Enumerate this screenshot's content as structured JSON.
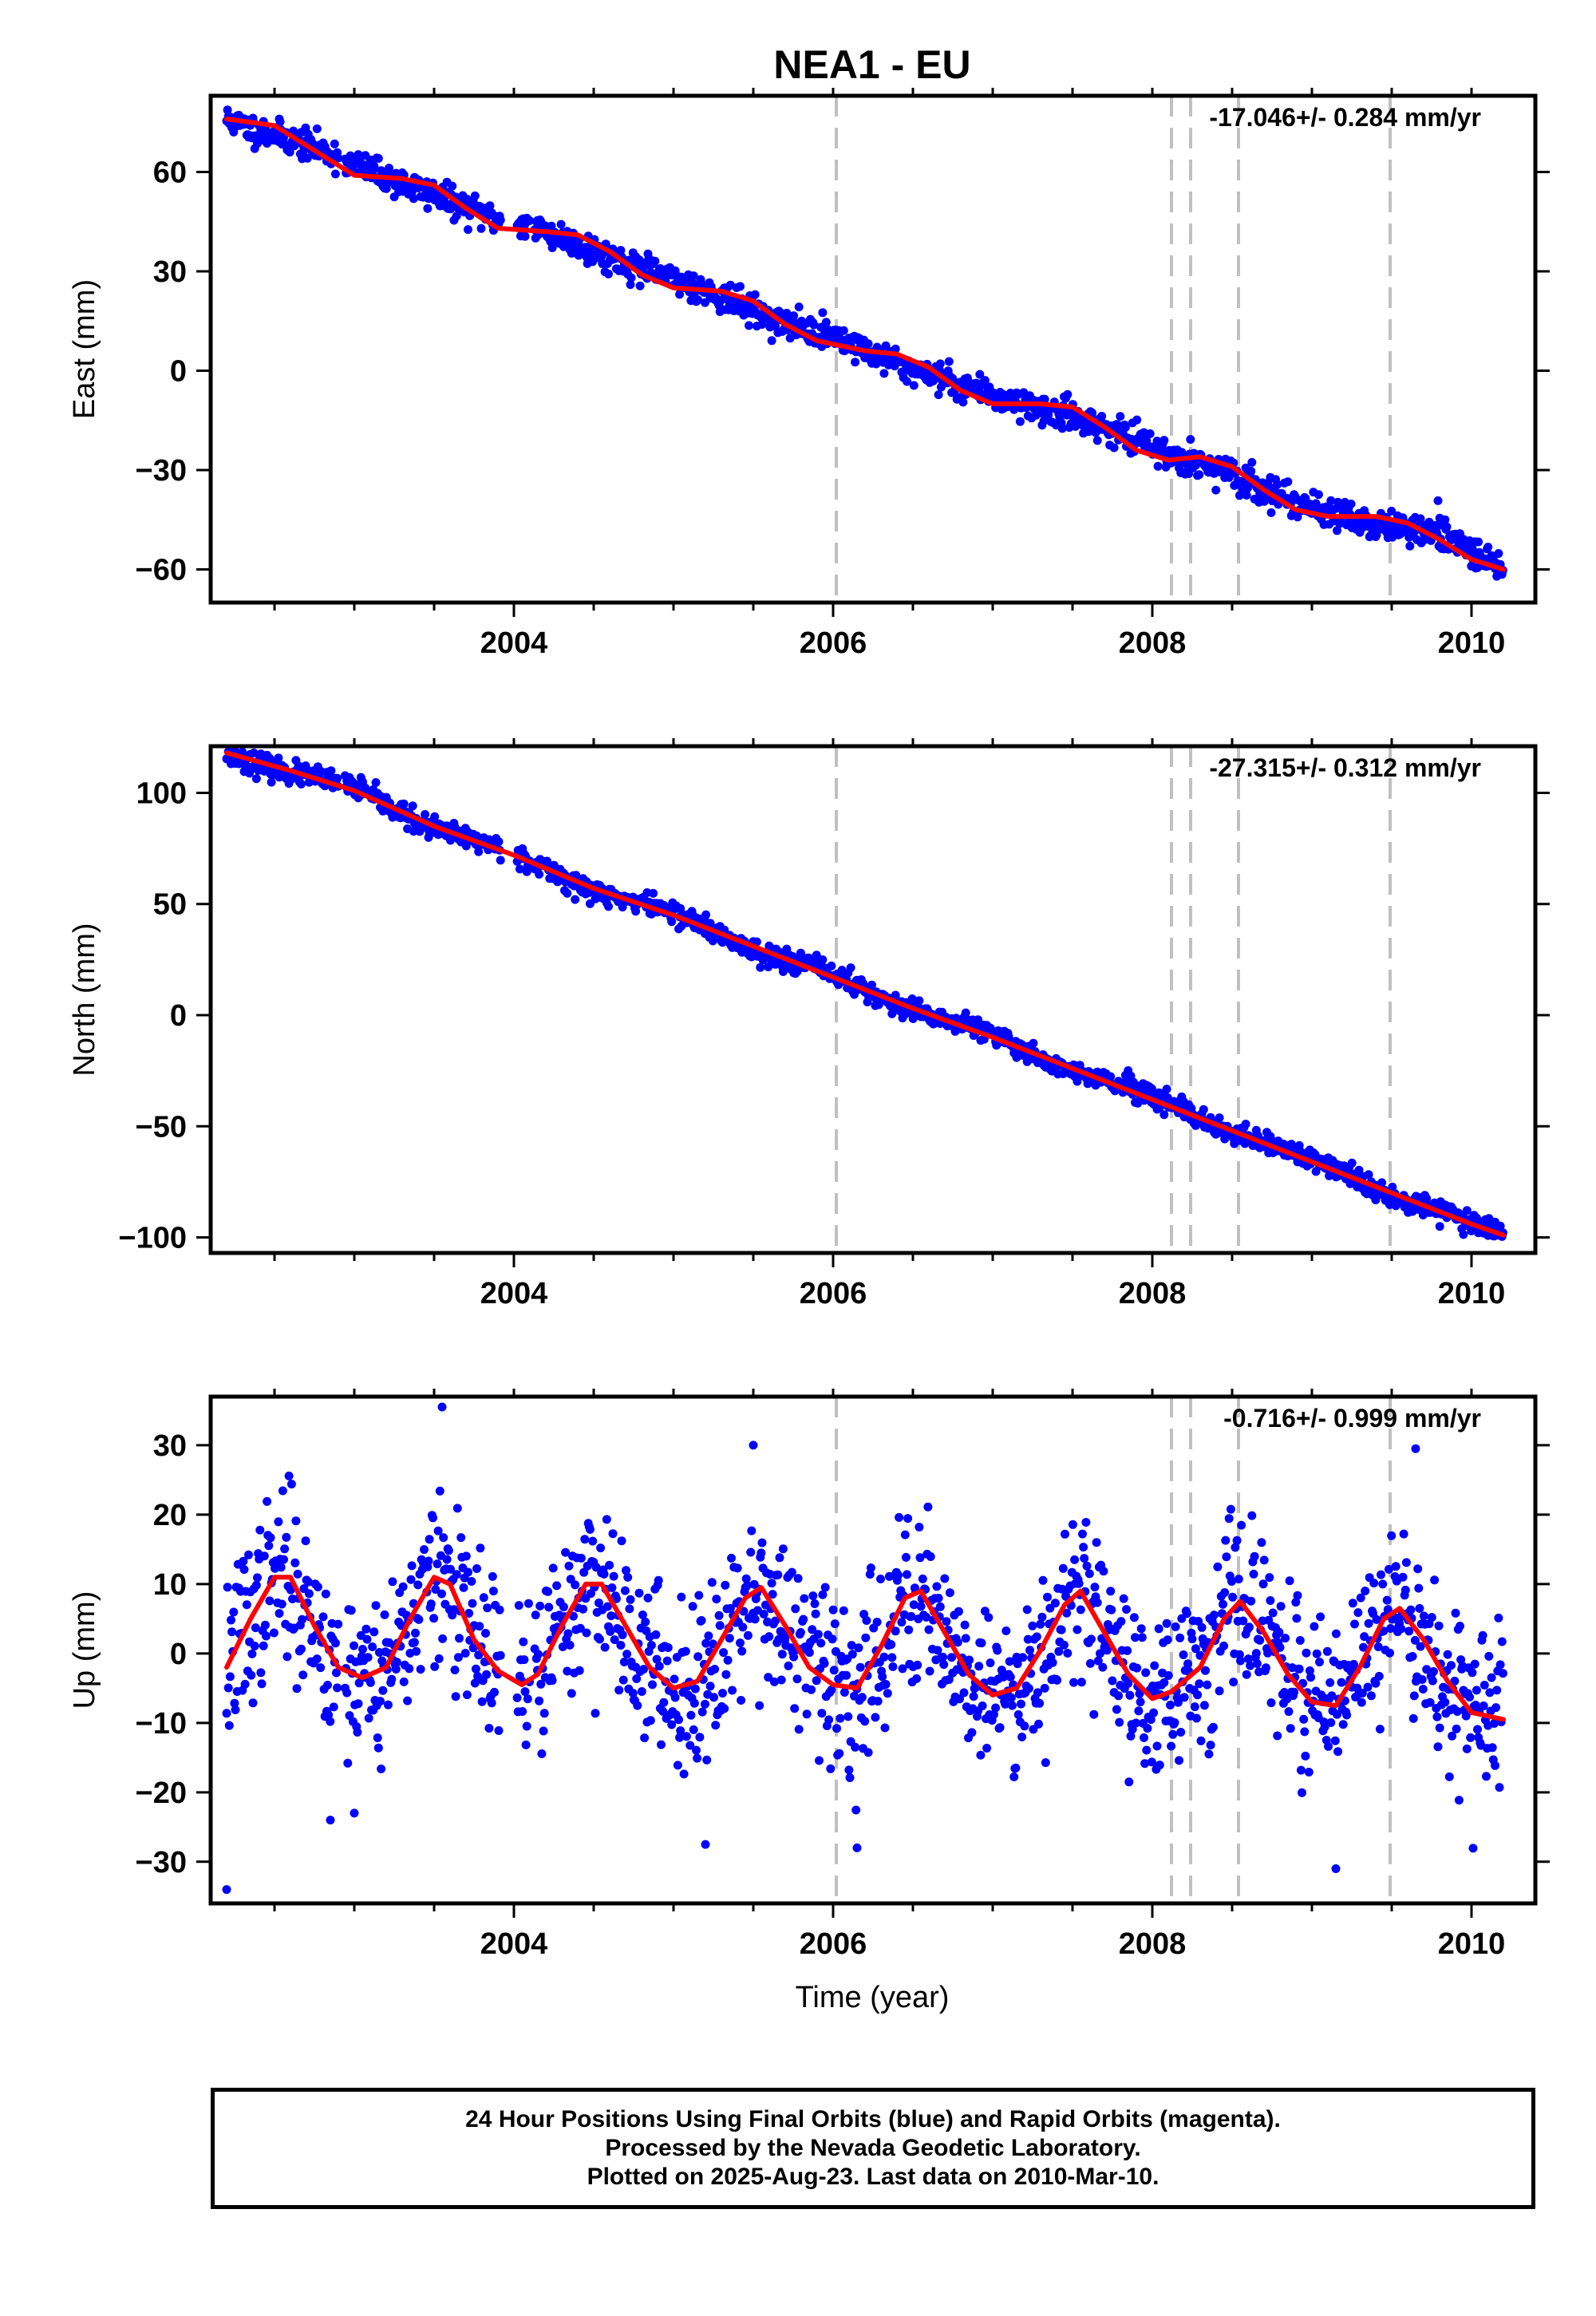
{
  "figure": {
    "title": "NEA1 - EU",
    "xlabel": "Time (year)",
    "colors": {
      "final_orbits": "#0000ff",
      "rapid_orbits": "#ff00ff",
      "model_fit": "#ff0000",
      "event_lines": "#c0c0c0"
    }
  },
  "footer": {
    "line1": "24 Hour Positions Using Final Orbits (blue) and Rapid Orbits (magenta).",
    "line2": "Processed by the Nevada Geodetic Laboratory.",
    "line3": "Plotted on 2025-Aug-23. Last data on 2010-Mar-10."
  },
  "chart_data": [
    {
      "type": "scatter",
      "component": "East",
      "ylabel": "East (mm)",
      "rate_label": "-17.046+/- 0.284 mm/yr",
      "rate_mm_per_yr": -17.046,
      "rate_sigma": 0.284,
      "xlim": [
        2002.1,
        2010.4
      ],
      "ylim": [
        -70,
        83
      ],
      "xticks": [
        2004,
        2006,
        2008,
        2010
      ],
      "yticks": [
        -60,
        -30,
        0,
        30,
        60
      ],
      "event_lines": [
        2006.02,
        2008.12,
        2008.24,
        2008.54,
        2009.49
      ],
      "fit": {
        "x": [
          2002.2,
          2002.5,
          2002.8,
          2003.0,
          2003.3,
          2003.5,
          2003.7,
          2003.9,
          2004.2,
          2004.4,
          2004.6,
          2004.8,
          2005.0,
          2005.3,
          2005.5,
          2005.7,
          2005.9,
          2006.2,
          2006.4,
          2006.6,
          2006.8,
          2007.0,
          2007.3,
          2007.5,
          2007.7,
          2007.9,
          2008.1,
          2008.3,
          2008.5,
          2008.7,
          2008.9,
          2009.1,
          2009.4,
          2009.6,
          2009.8,
          2010.0,
          2010.2
        ],
        "y": [
          76,
          74,
          65,
          59,
          58,
          56,
          49,
          43,
          42,
          41,
          36,
          29,
          25,
          24,
          21,
          14,
          9,
          6,
          5,
          1,
          -6,
          -10,
          -10,
          -11,
          -17,
          -24,
          -27,
          -26,
          -29,
          -36,
          -42,
          -44,
          -44,
          -46,
          -51,
          -57,
          -60
        ]
      },
      "noise_seed": 11,
      "noise_sd": 2.2,
      "seasonal_amp": 2.5
    },
    {
      "type": "scatter",
      "component": "North",
      "ylabel": "North (mm)",
      "rate_label": "-27.315+/- 0.312 mm/yr",
      "rate_mm_per_yr": -27.315,
      "rate_sigma": 0.312,
      "xlim": [
        2002.1,
        2010.4
      ],
      "ylim": [
        -107,
        121
      ],
      "xticks": [
        2004,
        2006,
        2008,
        2010
      ],
      "yticks": [
        -100,
        -50,
        0,
        50,
        100
      ],
      "event_lines": [
        2006.02,
        2008.12,
        2008.24,
        2008.54,
        2009.49
      ],
      "fit": {
        "x": [
          2002.2,
          2002.6,
          2003.0,
          2003.5,
          2004.0,
          2004.5,
          2005.0,
          2005.5,
          2006.0,
          2006.5,
          2007.0,
          2007.5,
          2008.0,
          2008.5,
          2009.0,
          2009.5,
          2010.0,
          2010.2
        ],
        "y": [
          118,
          110,
          101,
          85,
          72,
          57,
          45,
          31,
          17,
          3,
          -10,
          -24,
          -38,
          -52,
          -66,
          -80,
          -94,
          -99
        ]
      },
      "noise_seed": 23,
      "noise_sd": 2.4,
      "seasonal_amp": 1.5
    },
    {
      "type": "scatter",
      "component": "Up",
      "ylabel": "Up (mm)",
      "rate_label": "-0.716+/- 0.999 mm/yr",
      "rate_mm_per_yr": -0.716,
      "rate_sigma": 0.999,
      "xlim": [
        2002.1,
        2010.4
      ],
      "ylim": [
        -36,
        37
      ],
      "xticks": [
        2004,
        2006,
        2008,
        2010
      ],
      "yticks": [
        -30,
        -20,
        -10,
        0,
        10,
        20,
        30
      ],
      "event_lines": [
        2006.02,
        2008.12,
        2008.24,
        2008.54,
        2009.49
      ],
      "fit": {
        "x": [
          2002.2,
          2002.35,
          2002.5,
          2002.6,
          2002.75,
          2002.9,
          2003.05,
          2003.2,
          2003.35,
          2003.5,
          2003.6,
          2003.75,
          2003.9,
          2004.05,
          2004.15,
          2004.3,
          2004.45,
          2004.55,
          2004.7,
          2004.85,
          2005.0,
          2005.15,
          2005.3,
          2005.45,
          2005.55,
          2005.7,
          2005.85,
          2006.0,
          2006.15,
          2006.3,
          2006.45,
          2006.55,
          2006.7,
          2006.85,
          2007.0,
          2007.15,
          2007.3,
          2007.45,
          2007.55,
          2007.7,
          2007.85,
          2008.0,
          2008.12,
          2008.3,
          2008.45,
          2008.55,
          2008.7,
          2008.85,
          2009.0,
          2009.15,
          2009.3,
          2009.45,
          2009.55,
          2009.7,
          2009.85,
          2010.0,
          2010.2
        ],
        "y": [
          -2,
          5,
          11,
          11,
          4,
          -2,
          -3.5,
          -2,
          5,
          11,
          10,
          2,
          -2.5,
          -4.5,
          -3,
          4,
          10,
          10,
          4,
          -2,
          -5,
          -4,
          2,
          8,
          9.5,
          4,
          -2,
          -4.5,
          -5,
          1,
          8,
          9,
          3,
          -3,
          -6,
          -5,
          0.5,
          7,
          9,
          3,
          -3,
          -6.5,
          -5.5,
          -2,
          5,
          7.5,
          3,
          -3,
          -7,
          -7.5,
          -2,
          5,
          6.5,
          2,
          -4,
          -8.5,
          -9.5
        ]
      },
      "noise_seed": 37,
      "noise_sd": 6.0,
      "seasonal_amp": 0,
      "outliers": [
        {
          "x": 2002.2,
          "y": -34
        },
        {
          "x": 2003.55,
          "y": 35.5
        },
        {
          "x": 2005.2,
          "y": -27.5
        },
        {
          "x": 2005.5,
          "y": 30
        },
        {
          "x": 2006.15,
          "y": -28
        },
        {
          "x": 2009.15,
          "y": -31
        },
        {
          "x": 2009.65,
          "y": 29.5
        },
        {
          "x": 2002.85,
          "y": -24
        },
        {
          "x": 2003.0,
          "y": -23
        }
      ]
    }
  ]
}
